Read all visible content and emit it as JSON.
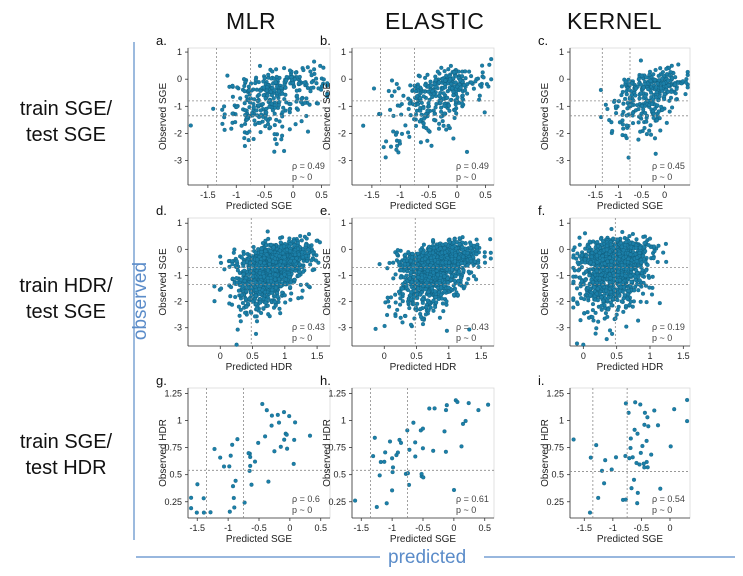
{
  "figure": {
    "col_headers": [
      "MLR",
      "ELASTIC",
      "KERNEL"
    ],
    "row_headers": [
      [
        "train SGE/",
        "test SGE"
      ],
      [
        "train HDR/",
        "test SGE"
      ],
      [
        "train SGE/",
        "test HDR"
      ]
    ],
    "y_axis_title": "observed",
    "x_axis_title": "predicted",
    "point_color": "#1b7fa8",
    "point_edge": "#0d5470",
    "guide_color": "#8a8a8a",
    "axis_line_color": "#5b8cc9"
  },
  "chart_data": [
    {
      "panel": "a.",
      "type": "scatter",
      "xlabel": "Predicted SGE",
      "ylabel": "Observed SGE",
      "xlim": [
        -1.85,
        0.65
      ],
      "ylim": [
        -3.9,
        1.15
      ],
      "xticks": [
        -1.5,
        -1,
        -0.5,
        0,
        0.5
      ],
      "xticklabels": [
        "-1.5",
        "-1",
        "-0.5",
        "0",
        "0.5"
      ],
      "yticks": [
        1,
        0,
        -1,
        -2,
        -3
      ],
      "yticklabels": [
        "1",
        "0",
        "-1",
        "-2",
        "-3"
      ],
      "vlines": [
        -1.35,
        -0.75
      ],
      "hlines": [
        -0.8,
        -1.35
      ],
      "rho_label": "ρ = 0.49",
      "p_label": "p ~ 0",
      "cloud": {
        "n": 330,
        "x_mean": -0.35,
        "x_sd": 0.42,
        "y_mean": -0.45,
        "y_sd": 0.9,
        "r": 0.49,
        "y_max": 1.05,
        "skew": 1
      }
    },
    {
      "panel": "b.",
      "type": "scatter",
      "xlabel": "Predicted SGE",
      "ylabel": "Observed SGE",
      "xlim": [
        -1.85,
        0.65
      ],
      "ylim": [
        -3.9,
        1.15
      ],
      "xticks": [
        -1.5,
        -1,
        -0.5,
        0,
        0.5
      ],
      "xticklabels": [
        "-1.5",
        "-1",
        "-0.5",
        "0",
        "0.5"
      ],
      "yticks": [
        1,
        0,
        -1,
        -2,
        -3
      ],
      "yticklabels": [
        "1",
        "0",
        "-1",
        "-2",
        "-3"
      ],
      "vlines": [
        -1.35,
        -0.75
      ],
      "hlines": [
        -0.8,
        -1.35
      ],
      "rho_label": "ρ = 0.49",
      "p_label": "p ~ 0",
      "cloud": {
        "n": 330,
        "x_mean": -0.35,
        "x_sd": 0.42,
        "y_mean": -0.45,
        "y_sd": 0.9,
        "r": 0.49,
        "y_max": 1.05,
        "skew": 1
      }
    },
    {
      "panel": "c.",
      "type": "scatter",
      "xlabel": "Predicted SGE",
      "ylabel": "Observed SGE",
      "xlim": [
        -2.05,
        0.55
      ],
      "ylim": [
        -3.9,
        1.15
      ],
      "xticks": [
        -1.5,
        -1,
        -0.5,
        0
      ],
      "xticklabels": [
        "-1.5",
        "-1",
        "-0.5",
        "0"
      ],
      "yticks": [
        1,
        0,
        -1,
        -2,
        -3
      ],
      "yticklabels": [
        "1",
        "0",
        "-1",
        "-2",
        "-3"
      ],
      "vlines": [
        -1.35,
        -0.75
      ],
      "hlines": [
        -0.8,
        -1.35
      ],
      "rho_label": "ρ = 0.45",
      "p_label": "p ~ 0",
      "cloud": {
        "n": 330,
        "x_mean": -0.3,
        "x_sd": 0.4,
        "y_mean": -0.4,
        "y_sd": 0.85,
        "r": 0.45,
        "y_max": 1.05,
        "skew": 1
      }
    },
    {
      "panel": "d.",
      "type": "scatter",
      "xlabel": "Predicted HDR",
      "ylabel": "Observed SGE",
      "xlim": [
        -0.5,
        1.7
      ],
      "ylim": [
        -3.7,
        1.2
      ],
      "xticks": [
        0,
        0.5,
        1,
        1.5
      ],
      "xticklabels": [
        "0",
        "0.5",
        "1",
        "1.5"
      ],
      "yticks": [
        1,
        0,
        -1,
        -2,
        -3
      ],
      "yticklabels": [
        "1",
        "0",
        "-1",
        "-2",
        "-3"
      ],
      "vlines": [
        0.48
      ],
      "hlines": [
        -0.7,
        -1.35
      ],
      "rho_label": "ρ = 0.43",
      "p_label": "p ~ 0",
      "cloud": {
        "n": 1400,
        "x_mean": 0.8,
        "x_sd": 0.28,
        "y_mean": -0.55,
        "y_sd": 0.85,
        "r": 0.43,
        "y_max": 1.05,
        "skew": 1
      }
    },
    {
      "panel": "e.",
      "type": "scatter",
      "xlabel": "Predicted HDR",
      "ylabel": "Observed SGE",
      "xlim": [
        -0.5,
        1.7
      ],
      "ylim": [
        -3.7,
        1.2
      ],
      "xticks": [
        0,
        0.5,
        1,
        1.5
      ],
      "xticklabels": [
        "0",
        "0.5",
        "1",
        "1.5"
      ],
      "yticks": [
        1,
        0,
        -1,
        -2,
        -3
      ],
      "yticklabels": [
        "1",
        "0",
        "-1",
        "-2",
        "-3"
      ],
      "vlines": [
        0.48
      ],
      "hlines": [
        -0.7,
        -1.35
      ],
      "rho_label": "ρ = 0.43",
      "p_label": "p ~ 0",
      "cloud": {
        "n": 1400,
        "x_mean": 0.8,
        "x_sd": 0.28,
        "y_mean": -0.55,
        "y_sd": 0.85,
        "r": 0.43,
        "y_max": 1.05,
        "skew": 1
      }
    },
    {
      "panel": "f.",
      "type": "scatter",
      "xlabel": "Predicted HDR",
      "ylabel": "Observed SGE",
      "xlim": [
        -0.2,
        1.6
      ],
      "ylim": [
        -3.7,
        1.2
      ],
      "xticks": [
        0,
        0.5,
        1,
        1.5
      ],
      "xticklabels": [
        "0",
        "0.5",
        "1",
        "1.5"
      ],
      "yticks": [
        1,
        0,
        -1,
        -2,
        -3
      ],
      "yticklabels": [
        "1",
        "0",
        "-1",
        "-2",
        "-3"
      ],
      "vlines": [
        0.48
      ],
      "hlines": [
        -0.7,
        -1.35
      ],
      "rho_label": "ρ = 0.19",
      "p_label": "p ~ 0",
      "cloud": {
        "n": 1400,
        "x_mean": 0.45,
        "x_sd": 0.25,
        "y_mean": -0.5,
        "y_sd": 0.9,
        "r": 0.19,
        "y_max": 1.05,
        "skew": 1
      }
    },
    {
      "panel": "g.",
      "type": "scatter",
      "xlabel": "Predicted SGE",
      "ylabel": "Observed HDR",
      "xlim": [
        -1.65,
        0.65
      ],
      "ylim": [
        0.1,
        1.3
      ],
      "xticks": [
        -1.5,
        -1,
        -0.5,
        0,
        0.5
      ],
      "xticklabels": [
        "-1.5",
        "-1",
        "-0.5",
        "0",
        "0.5"
      ],
      "yticks": [
        1.25,
        1,
        0.75,
        0.5,
        0.25
      ],
      "yticklabels": [
        "1.25",
        "1",
        "0.75",
        "0.5",
        "0.25"
      ],
      "vlines": [
        -1.35,
        -0.75
      ],
      "hlines": [
        0.54
      ],
      "rho_label": "ρ = 0.6",
      "p_label": "p ~ 0",
      "cloud": {
        "n": 48,
        "x_mean": -0.55,
        "x_sd": 0.5,
        "y_mean": 0.7,
        "y_sd": 0.32,
        "r": 0.6,
        "y_max": 1.2,
        "skew": 0
      }
    },
    {
      "panel": "h.",
      "type": "scatter",
      "xlabel": "Predicted SGE",
      "ylabel": "Observed HDR",
      "xlim": [
        -1.65,
        0.65
      ],
      "ylim": [
        0.1,
        1.3
      ],
      "xticks": [
        -1.5,
        -1,
        -0.5,
        0,
        0.5
      ],
      "xticklabels": [
        "-1.5",
        "-1",
        "-0.5",
        "0",
        "0.5"
      ],
      "yticks": [
        1.25,
        1,
        0.75,
        0.5,
        0.25
      ],
      "yticklabels": [
        "1.25",
        "1",
        "0.75",
        "0.5",
        "0.25"
      ],
      "vlines": [
        -1.35,
        -0.75
      ],
      "hlines": [
        0.54
      ],
      "rho_label": "ρ = 0.61",
      "p_label": "p ~ 0",
      "cloud": {
        "n": 48,
        "x_mean": -0.55,
        "x_sd": 0.5,
        "y_mean": 0.7,
        "y_sd": 0.32,
        "r": 0.61,
        "y_max": 1.2,
        "skew": 0
      }
    },
    {
      "panel": "i.",
      "type": "scatter",
      "xlabel": "Predicted SGE",
      "ylabel": "Observed HDR",
      "xlim": [
        -1.75,
        0.35
      ],
      "ylim": [
        0.1,
        1.3
      ],
      "xticks": [
        -1.5,
        -1,
        -0.5,
        0
      ],
      "xticklabels": [
        "-1.5",
        "-1",
        "-0.5",
        "0"
      ],
      "yticks": [
        1.25,
        1,
        0.75,
        0.5,
        0.25
      ],
      "yticklabels": [
        "1.25",
        "1",
        "0.75",
        "0.5",
        "0.25"
      ],
      "vlines": [
        -1.35,
        -0.75
      ],
      "hlines": [
        0.53
      ],
      "rho_label": "ρ = 0.54",
      "p_label": "p ~ 0",
      "cloud": {
        "n": 48,
        "x_mean": -0.6,
        "x_sd": 0.45,
        "y_mean": 0.7,
        "y_sd": 0.32,
        "r": 0.54,
        "y_max": 1.2,
        "skew": 0
      }
    }
  ]
}
